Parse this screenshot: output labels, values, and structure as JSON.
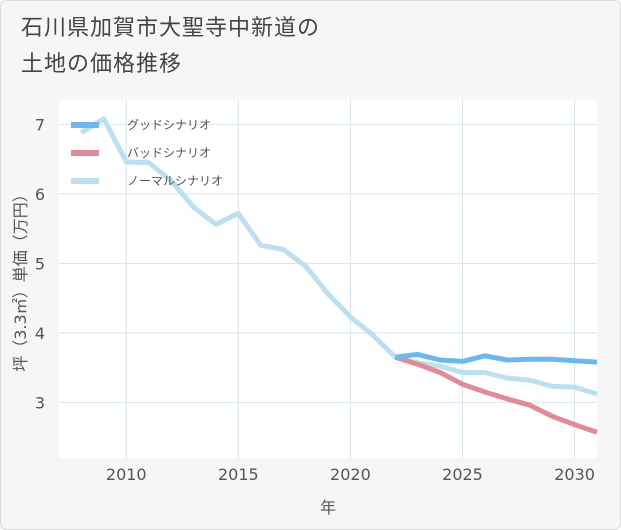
{
  "title_lines": [
    "石川県加賀市大聖寺中新道の",
    "土地の価格推移"
  ],
  "chart_data": {
    "type": "line",
    "xlabel": "年",
    "ylabel": "坪（3.3㎡）単価（万円）",
    "xlim": [
      2007,
      2031
    ],
    "ylim": [
      2.2,
      7.35
    ],
    "xticks": [
      2010,
      2015,
      2020,
      2025,
      2030
    ],
    "yticks": [
      3,
      4,
      5,
      6,
      7
    ],
    "grid": true,
    "legend_position": "top-left",
    "series": [
      {
        "name": "グッドシナリオ",
        "color": "#6cb8ec",
        "x": [
          2022,
          2023,
          2024,
          2025,
          2026,
          2027,
          2028,
          2029,
          2030,
          2031
        ],
        "y": [
          3.65,
          3.69,
          3.61,
          3.59,
          3.67,
          3.61,
          3.62,
          3.62,
          3.6,
          3.58
        ]
      },
      {
        "name": "バッドシナリオ",
        "color": "#e08c96",
        "x": [
          2022,
          2023,
          2024,
          2025,
          2026,
          2027,
          2028,
          2029,
          2030,
          2031
        ],
        "y": [
          3.65,
          3.55,
          3.43,
          3.26,
          3.15,
          3.05,
          2.96,
          2.8,
          2.68,
          2.57
        ]
      },
      {
        "name": "ノーマルシナリオ",
        "color": "#bde0ee",
        "x": [
          2008,
          2009,
          2010,
          2011,
          2012,
          2013,
          2014,
          2015,
          2016,
          2017,
          2018,
          2019,
          2020,
          2021,
          2022,
          2023,
          2024,
          2025,
          2026,
          2027,
          2028,
          2029,
          2030,
          2031
        ],
        "y": [
          6.88,
          7.08,
          6.46,
          6.45,
          6.19,
          5.81,
          5.56,
          5.72,
          5.26,
          5.2,
          4.96,
          4.56,
          4.23,
          3.97,
          3.65,
          3.57,
          3.52,
          3.43,
          3.43,
          3.35,
          3.32,
          3.23,
          3.22,
          3.12
        ]
      }
    ]
  }
}
